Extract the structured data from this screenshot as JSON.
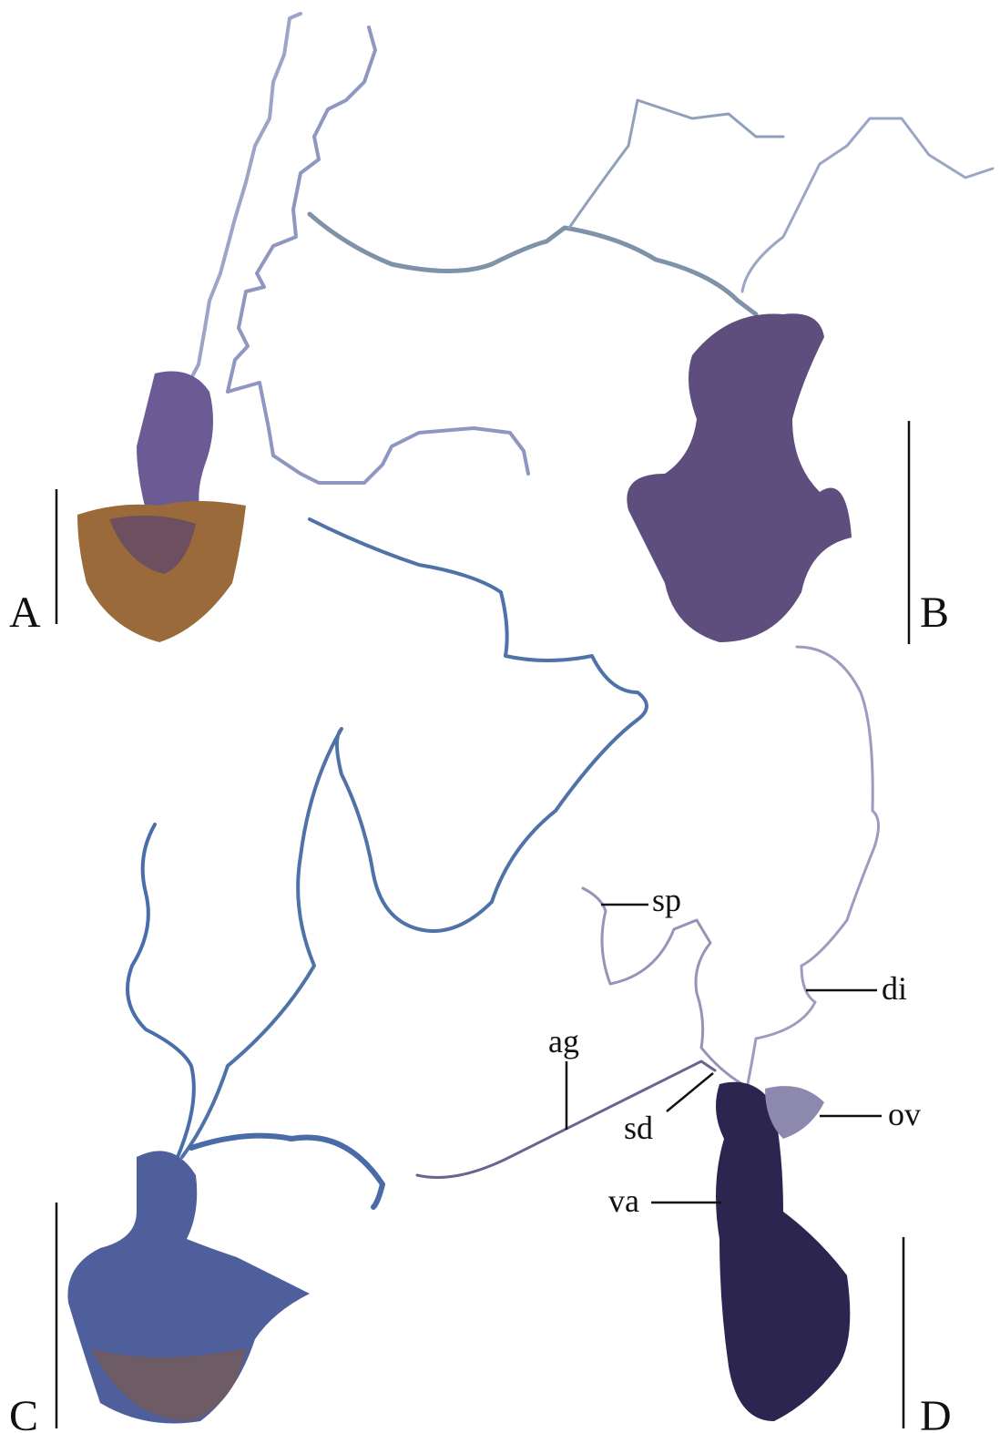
{
  "panels": [
    {
      "label": "A"
    },
    {
      "label": "B"
    },
    {
      "label": "C"
    },
    {
      "label": "D"
    }
  ],
  "annotations": [
    {
      "label": "sp"
    },
    {
      "label": "di"
    },
    {
      "label": "ag"
    },
    {
      "label": "sd"
    },
    {
      "label": "ov"
    },
    {
      "label": "va"
    }
  ]
}
